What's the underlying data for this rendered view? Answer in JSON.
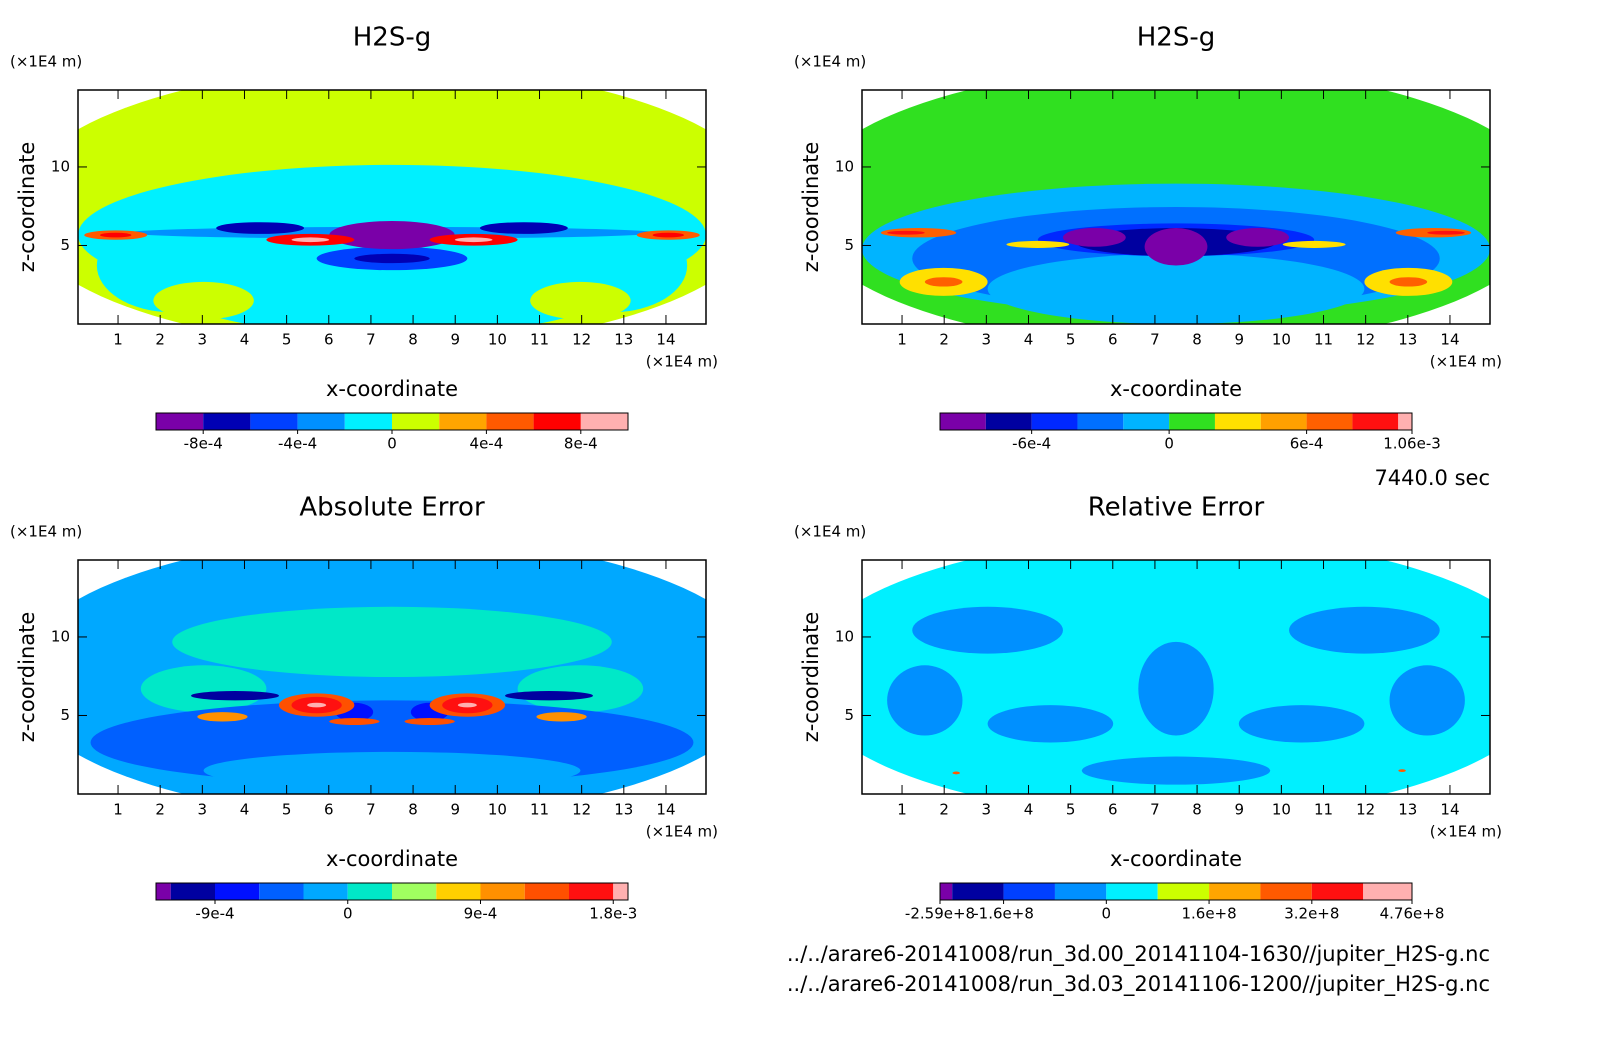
{
  "chart_data": [
    {
      "type": "contour",
      "title": "H2S-g",
      "xlabel": "x-coordinate",
      "ylabel": "z-coordinate",
      "x_unit": "(×1E4 m)",
      "y_unit": "(×1E4 m)",
      "xlim": [
        0.05,
        14.95
      ],
      "ylim": [
        0,
        14.9
      ],
      "xticks": [
        1,
        2,
        3,
        4,
        5,
        6,
        7,
        8,
        9,
        10,
        11,
        12,
        13,
        14
      ],
      "yticks": [
        5,
        10
      ],
      "colorbar": {
        "levels": [
          -0.001,
          -0.0008,
          -0.0006,
          -0.0004,
          -0.0002,
          0,
          0.0002,
          0.0004,
          0.0006,
          0.0008,
          0.001
        ],
        "colors": [
          "#7a00a8",
          "#0000b4",
          "#0040ff",
          "#0090ff",
          "#00f0ff",
          "#ccff00",
          "#ffa500",
          "#ff5a00",
          "#ff0000",
          "#ffb0b0"
        ],
        "ticks": [
          {
            "value": -0.0008,
            "label": "-8e-4"
          },
          {
            "value": -0.0004,
            "label": "-4e-4"
          },
          0,
          {
            "value": 0.0004,
            "label": "4e-4"
          },
          {
            "value": 0.0008,
            "label": "8e-4"
          }
        ]
      }
    },
    {
      "type": "contour",
      "title": "H2S-g",
      "xlabel": "x-coordinate",
      "ylabel": "z-coordinate",
      "x_unit": "(×1E4 m)",
      "y_unit": "(×1E4 m)",
      "xlim": [
        0.05,
        14.95
      ],
      "ylim": [
        0,
        14.9
      ],
      "xticks": [
        1,
        2,
        3,
        4,
        5,
        6,
        7,
        8,
        9,
        10,
        11,
        12,
        13,
        14
      ],
      "yticks": [
        5,
        10
      ],
      "colorbar": {
        "levels": [
          -0.001,
          -0.0008,
          -0.0006,
          -0.0004,
          -0.0002,
          0,
          0.0002,
          0.0004,
          0.0006,
          0.0008,
          0.001,
          0.00106
        ],
        "colors": [
          "#7a00a8",
          "#0000a0",
          "#0028ff",
          "#0070ff",
          "#00b4ff",
          "#30e020",
          "#ffe000",
          "#ffa000",
          "#ff6000",
          "#ff1010",
          "#ffb0b0"
        ],
        "ticks": [
          {
            "value": -0.0006,
            "label": "-6e-4"
          },
          0,
          {
            "value": 0.0006,
            "label": "6e-4"
          },
          {
            "value": 0.00106,
            "label": "1.06e-3"
          }
        ]
      }
    },
    {
      "type": "contour",
      "title": "Absolute Error",
      "xlabel": "x-coordinate",
      "ylabel": "z-coordinate",
      "x_unit": "(×1E4 m)",
      "y_unit": "(×1E4 m)",
      "xlim": [
        0.05,
        14.95
      ],
      "ylim": [
        0,
        14.9
      ],
      "xticks": [
        1,
        2,
        3,
        4,
        5,
        6,
        7,
        8,
        9,
        10,
        11,
        12,
        13,
        14
      ],
      "yticks": [
        5,
        10
      ],
      "colorbar": {
        "levels": [
          -0.0013,
          -0.0012,
          -0.0009,
          -0.0006,
          -0.0003,
          0,
          0.0003,
          0.0006,
          0.0009,
          0.0012,
          0.0015,
          0.0018,
          0.0019
        ],
        "colors": [
          "#7a00a8",
          "#0000a0",
          "#0010ff",
          "#0060ff",
          "#00a8ff",
          "#00e8c8",
          "#a0ff60",
          "#ffd000",
          "#ff9000",
          "#ff5000",
          "#ff1010",
          "#ffb0b0"
        ],
        "ticks": [
          {
            "value": -0.0009,
            "label": "-9e-4"
          },
          0,
          {
            "value": 0.0009,
            "label": "9e-4"
          },
          {
            "value": 0.0018,
            "label": "1.8e-3"
          }
        ]
      }
    },
    {
      "type": "contour",
      "title": "Relative Error",
      "xlabel": "x-coordinate",
      "ylabel": "z-coordinate",
      "x_unit": "(×1E4 m)",
      "y_unit": "(×1E4 m)",
      "xlim": [
        0.05,
        14.95
      ],
      "ylim": [
        0,
        14.9
      ],
      "xticks": [
        1,
        2,
        3,
        4,
        5,
        6,
        7,
        8,
        9,
        10,
        11,
        12,
        13,
        14
      ],
      "yticks": [
        5,
        10
      ],
      "colorbar": {
        "levels": [
          -259000000,
          -240000000,
          -160000000,
          -80000000,
          0,
          80000000,
          160000000,
          240000000,
          320000000,
          400000000,
          476000000
        ],
        "colors": [
          "#7a00a8",
          "#0000a0",
          "#0040ff",
          "#0090ff",
          "#00f0ff",
          "#ccff00",
          "#ffa500",
          "#ff5a00",
          "#ff1010",
          "#ffb0b0"
        ],
        "ticks": [
          {
            "value": -259000000,
            "label": "-2.59e+8"
          },
          {
            "value": -160000000,
            "label": "-1.6e+8"
          },
          0,
          {
            "value": 160000000,
            "label": "1.6e+8"
          },
          {
            "value": 320000000,
            "label": "3.2e+8"
          },
          {
            "value": 476000000,
            "label": "4.76e+8"
          }
        ]
      }
    }
  ],
  "time": "7440.0 sec",
  "files": [
    "../../arare6-20141008/run_3d.00_20141104-1630//jupiter_H2S-g.nc",
    "../../arare6-20141008/run_3d.03_20141106-1200//jupiter_H2S-g.nc"
  ]
}
